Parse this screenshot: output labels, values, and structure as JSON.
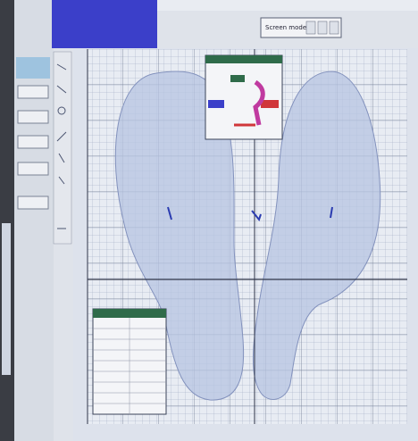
{
  "toolbar": {
    "mode_label": "Screen mode"
  }
}
